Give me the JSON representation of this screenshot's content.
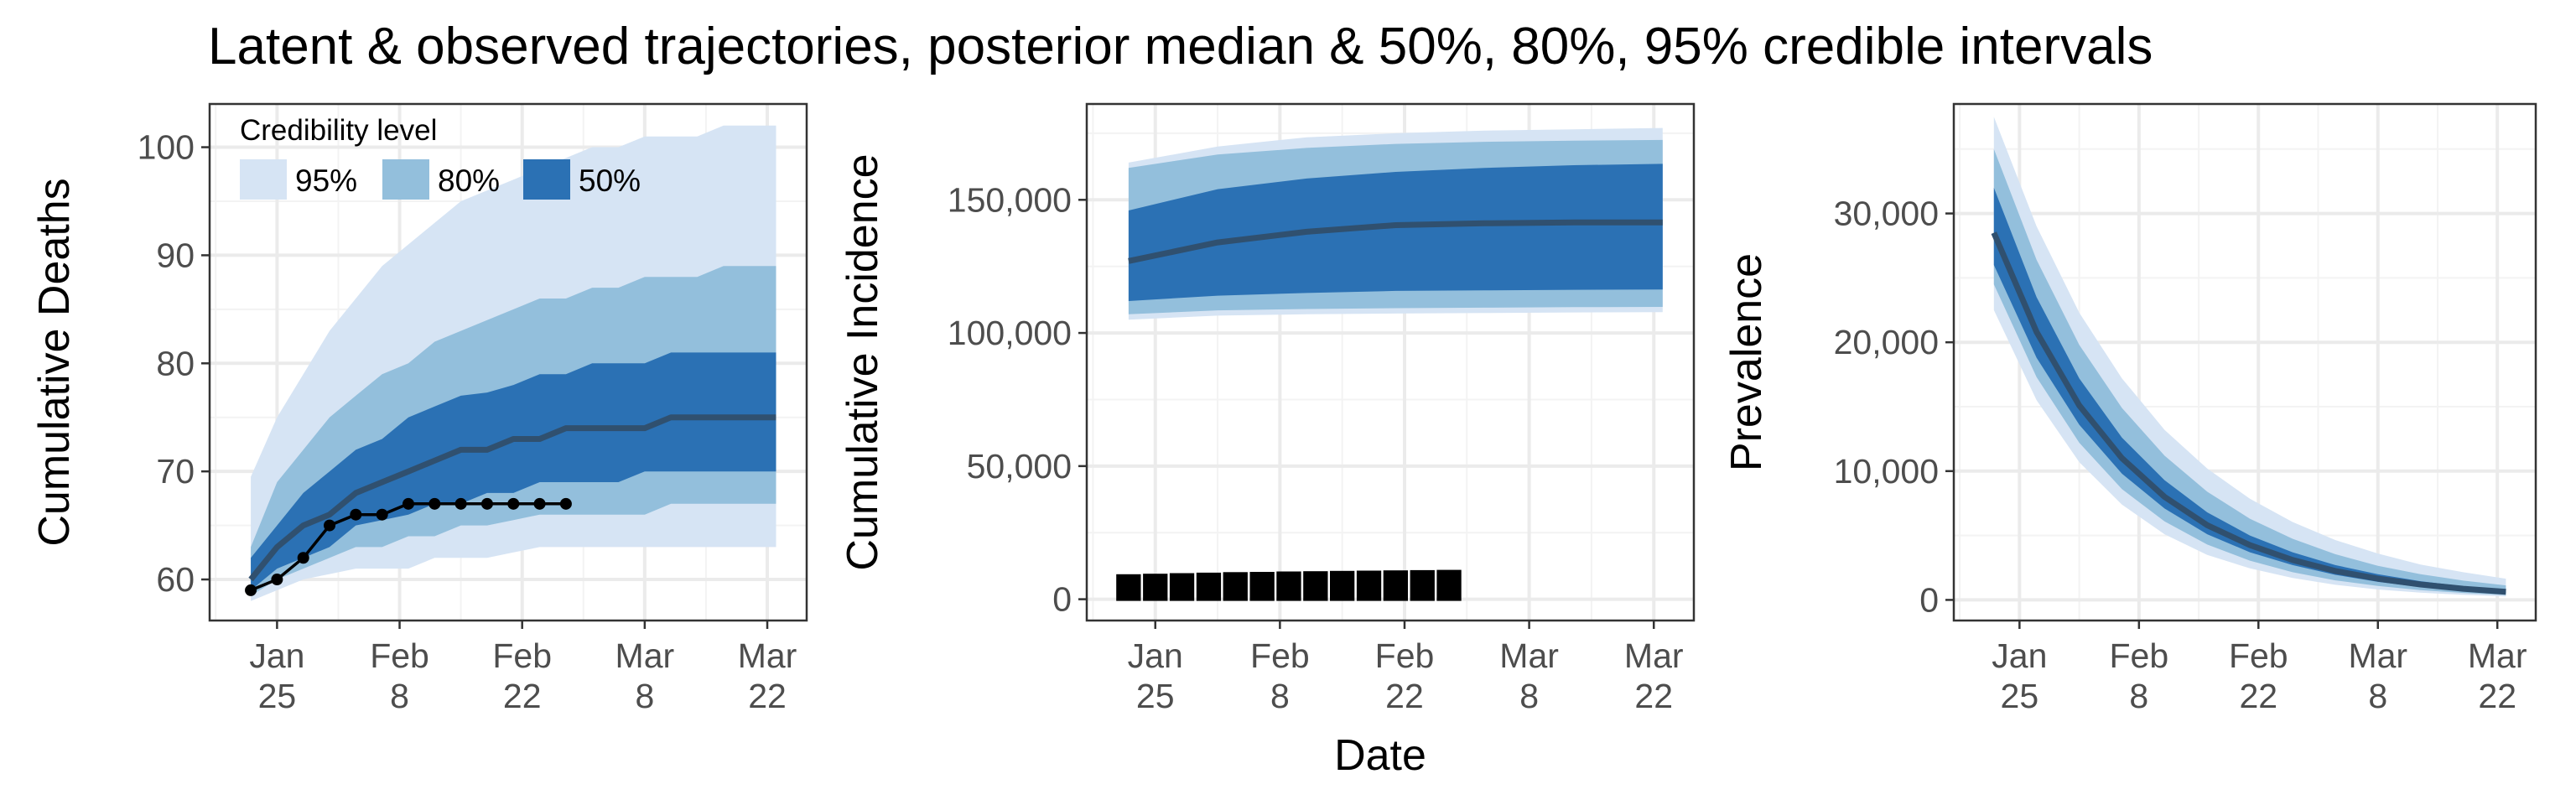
{
  "title": "Latent & observed trajectories, posterior median & 50%, 80%, 95% credible intervals",
  "xlabel": "Date",
  "colors": {
    "ci95": "#d6e4f4",
    "ci80": "#93bfdc",
    "ci50": "#2b71b4",
    "median": "#30506f",
    "observed": "#000000"
  },
  "legend": {
    "title": "Credibility level",
    "items": [
      {
        "label": "95%",
        "color": "#d6e4f4"
      },
      {
        "label": "80%",
        "color": "#93bfdc"
      },
      {
        "label": "50%",
        "color": "#2b71b4"
      }
    ]
  },
  "chart_data": [
    {
      "type": "area",
      "ylabel": "Cumulative Deaths",
      "xlim": [
        -4.7,
        63.5
      ],
      "ylim": [
        56.2,
        104
      ],
      "x_ticks": [
        3,
        17,
        31,
        45,
        59
      ],
      "x_tick_labels": [
        [
          "Jan",
          "25"
        ],
        [
          "Feb",
          "8"
        ],
        [
          "Feb",
          "22"
        ],
        [
          "Mar",
          "8"
        ],
        [
          "Mar",
          "22"
        ]
      ],
      "y_ticks": [
        60,
        70,
        80,
        90,
        100
      ],
      "y_tick_labels": [
        "60",
        "70",
        "80",
        "90",
        "100"
      ],
      "x": [
        0,
        3,
        6,
        9,
        12,
        15,
        18,
        21,
        24,
        27,
        30,
        33,
        36,
        39,
        42,
        45,
        48,
        51,
        54,
        57,
        60
      ],
      "median": [
        60,
        63,
        65,
        66,
        68,
        69,
        70,
        71,
        72,
        72,
        73,
        73,
        74,
        74,
        74,
        74,
        75,
        75,
        75,
        75,
        75
      ],
      "ci50_lo": [
        59,
        61,
        62,
        63,
        65,
        65.5,
        66,
        67,
        67,
        68,
        68,
        69,
        69,
        69,
        69,
        70,
        70,
        70,
        70,
        70,
        70
      ],
      "ci50_hi": [
        62,
        65,
        68,
        70,
        72,
        73,
        75,
        76,
        77,
        77.3,
        78,
        79,
        79,
        80,
        80,
        80,
        81,
        81,
        81,
        81,
        81
      ],
      "ci80_lo": [
        58.5,
        60,
        61,
        62,
        63,
        63,
        64,
        64,
        65,
        65,
        65.5,
        66,
        66,
        66,
        66,
        66,
        67,
        67,
        67,
        67,
        67
      ],
      "ci80_hi": [
        63,
        69,
        72,
        75,
        77,
        79,
        80,
        82,
        83,
        84,
        85,
        86,
        86,
        87,
        87,
        88,
        88,
        88,
        89,
        89,
        89
      ],
      "ci95_lo": [
        58,
        59,
        60,
        60.5,
        61,
        61,
        61,
        62,
        62,
        62,
        62.5,
        63,
        63,
        63,
        63,
        63,
        63,
        63,
        63,
        63,
        63
      ],
      "ci95_hi": [
        69.5,
        75,
        79,
        83,
        86,
        89,
        91,
        93,
        95,
        96,
        97,
        98,
        99,
        100,
        100,
        101,
        101,
        101,
        102,
        102,
        102
      ],
      "observed": {
        "x": [
          0,
          3,
          6,
          9,
          12,
          15,
          18,
          21,
          24,
          27,
          30,
          33,
          36
        ],
        "y": [
          59,
          60,
          62,
          65,
          66,
          66,
          67,
          67,
          67,
          67,
          67,
          67,
          67
        ]
      },
      "legend": "inside-top-left"
    },
    {
      "type": "area",
      "ylabel": "Cumulative Incidence",
      "xlim": [
        -4.7,
        63.5
      ],
      "ylim": [
        -8000,
        186000
      ],
      "x_ticks": [
        3,
        17,
        31,
        45,
        59
      ],
      "x_tick_labels": [
        [
          "Jan",
          "25"
        ],
        [
          "Feb",
          "8"
        ],
        [
          "Feb",
          "22"
        ],
        [
          "Mar",
          "8"
        ],
        [
          "Mar",
          "22"
        ]
      ],
      "y_ticks": [
        0,
        50000,
        100000,
        150000
      ],
      "y_tick_labels": [
        "0",
        "50,000",
        "100,000",
        "150,000"
      ],
      "x": [
        0,
        10,
        20,
        30,
        40,
        50,
        60
      ],
      "median": [
        127000,
        134000,
        138000,
        140500,
        141200,
        141500,
        141500
      ],
      "ci50_lo": [
        112000,
        114000,
        115000,
        115800,
        116000,
        116200,
        116300
      ],
      "ci50_hi": [
        146000,
        154000,
        158000,
        160500,
        162000,
        163000,
        163500
      ],
      "ci80_lo": [
        107000,
        108500,
        109000,
        109300,
        109500,
        109700,
        109800
      ],
      "ci80_hi": [
        162000,
        167000,
        169500,
        171000,
        171800,
        172200,
        172500
      ],
      "ci95_lo": [
        105000,
        106500,
        107000,
        107300,
        107500,
        107700,
        107800
      ],
      "ci95_hi": [
        164000,
        170000,
        173500,
        175000,
        176000,
        176500,
        177000
      ],
      "observed": {
        "x": [
          0,
          3,
          6,
          9,
          12,
          15,
          18,
          21,
          24,
          27,
          30,
          33,
          36
        ],
        "y": [
          5600,
          5800,
          6000,
          6200,
          6400,
          6500,
          6650,
          6750,
          6850,
          6950,
          7050,
          7150,
          7250
        ]
      }
    },
    {
      "type": "area",
      "ylabel": "Prevalence",
      "xlim": [
        -4.7,
        63.5
      ],
      "ylim": [
        -1600,
        38500
      ],
      "x_ticks": [
        3,
        17,
        31,
        45,
        59
      ],
      "x_tick_labels": [
        [
          "Jan",
          "25"
        ],
        [
          "Feb",
          "8"
        ],
        [
          "Feb",
          "22"
        ],
        [
          "Mar",
          "8"
        ],
        [
          "Mar",
          "22"
        ]
      ],
      "y_ticks": [
        0,
        10000,
        20000,
        30000
      ],
      "y_tick_labels": [
        "0",
        "10,000",
        "20,000",
        "30,000"
      ],
      "x": [
        0,
        5,
        10,
        15,
        20,
        25,
        30,
        35,
        40,
        45,
        50,
        55,
        60
      ],
      "median": [
        28500,
        20800,
        15100,
        11000,
        8000,
        5800,
        4250,
        3100,
        2250,
        1650,
        1200,
        870,
        630
      ],
      "ci50_lo": [
        26000,
        18800,
        13600,
        9800,
        7100,
        5100,
        3700,
        2700,
        1950,
        1400,
        1000,
        730,
        530
      ],
      "ci50_hi": [
        32000,
        23500,
        17200,
        12600,
        9300,
        6800,
        5000,
        3700,
        2700,
        2000,
        1450,
        1070,
        780
      ],
      "ci80_lo": [
        24500,
        17300,
        12200,
        8600,
        6100,
        4300,
        3050,
        2150,
        1520,
        1080,
        760,
        540,
        380
      ],
      "ci80_hi": [
        35000,
        26400,
        19800,
        14900,
        11200,
        8400,
        6300,
        4750,
        3550,
        2650,
        2000,
        1500,
        1130
      ],
      "ci95_lo": [
        22500,
        15500,
        10700,
        7400,
        5100,
        3500,
        2450,
        1700,
        1170,
        810,
        560,
        390,
        270
      ],
      "ci95_hi": [
        37500,
        29000,
        22300,
        17200,
        13200,
        10200,
        7850,
        6050,
        4650,
        3600,
        2750,
        2150,
        1650
      ]
    }
  ]
}
